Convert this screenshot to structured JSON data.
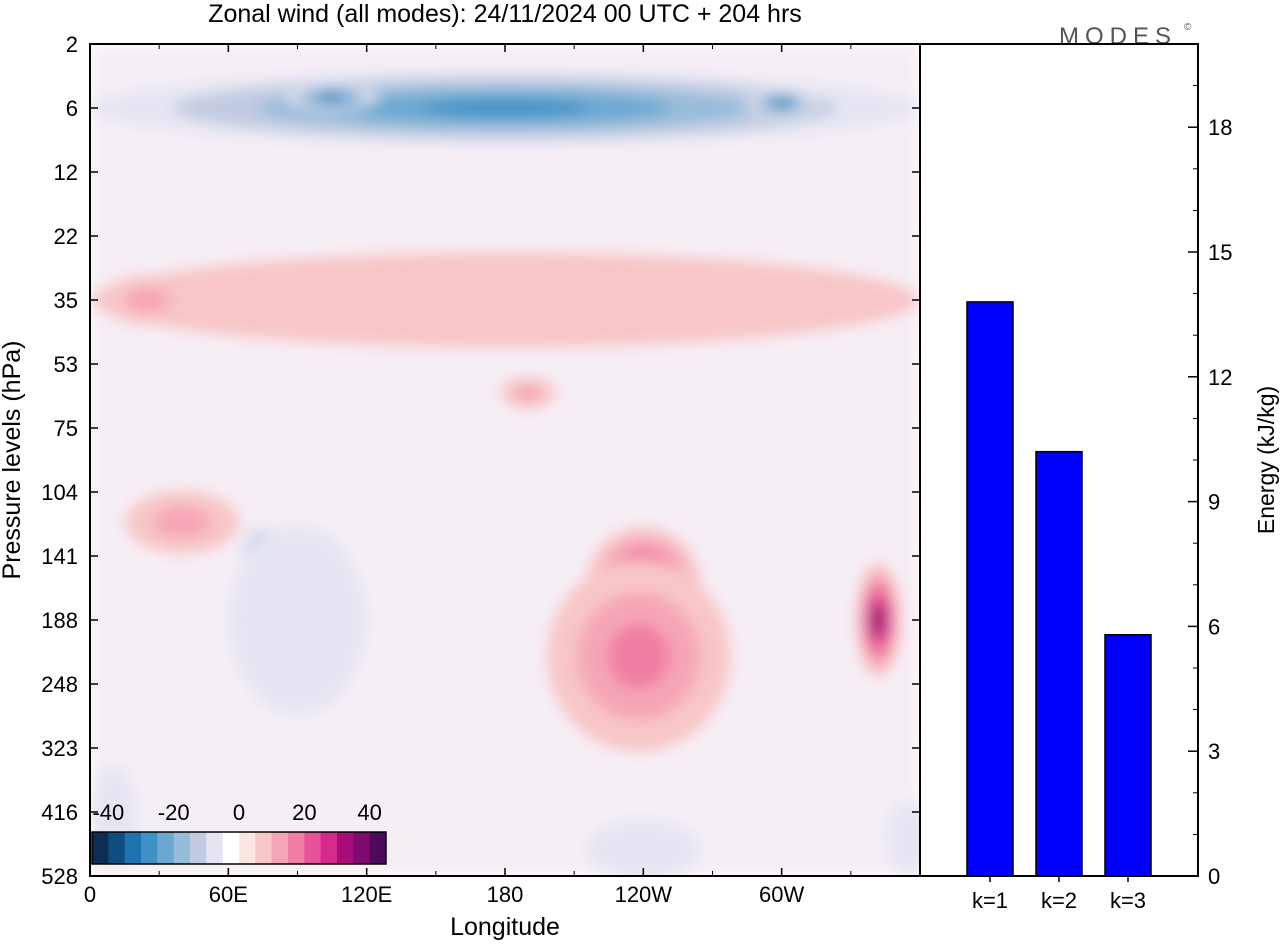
{
  "title": "Zonal wind (all modes):  24/11/2024  00 UTC  + 204 hrs",
  "logo_text": "MODES",
  "logo_mark": "©",
  "chart_data": [
    {
      "type": "heatmap",
      "title": "Zonal wind (all modes):  24/11/2024  00 UTC  + 204 hrs",
      "xlabel": "Longitude",
      "ylabel": "Pressure levels (hPa)",
      "x_ticks": [
        "0",
        "60E",
        "120E",
        "180",
        "120W",
        "60W"
      ],
      "x_range_deg": [
        0,
        360
      ],
      "y_ticks": [
        "2",
        "6",
        "12",
        "22",
        "35",
        "53",
        "75",
        "104",
        "141",
        "188",
        "248",
        "323",
        "416",
        "528"
      ],
      "colorbar": {
        "ticks": [
          "-40",
          "-20",
          "0",
          "20",
          "40"
        ],
        "range": [
          -45,
          45
        ],
        "colors": [
          "#0b2e52",
          "#0e4d7f",
          "#1d73b0",
          "#3f90c4",
          "#6aa8d1",
          "#97bcda",
          "#c2cbe2",
          "#e5e6f2",
          "#ffffff",
          "#fde5e2",
          "#f8c6c8",
          "#f5a5b5",
          "#f07ea2",
          "#e8529a",
          "#d42a8c",
          "#a80c7a",
          "#7d0a6e",
          "#4b0a5c"
        ]
      },
      "features": [
        {
          "lon": 180,
          "level": "6",
          "value": -30,
          "width_deg": 360,
          "depth_levels": 1.2
        },
        {
          "lon": 105,
          "level": "5",
          "value": -35,
          "width_deg": 40,
          "depth_levels": 0.4
        },
        {
          "lon": 300,
          "level": "5.5",
          "value": -35,
          "width_deg": 30,
          "depth_levels": 0.4
        },
        {
          "lon": 180,
          "level": "35",
          "value": 8,
          "width_deg": 360,
          "depth_levels": 1.5
        },
        {
          "lon": 25,
          "level": "35",
          "value": 13,
          "width_deg": 40,
          "depth_levels": 0.8
        },
        {
          "lon": 190,
          "level": "62",
          "value": 13,
          "width_deg": 25,
          "depth_levels": 0.5
        },
        {
          "lon": 75,
          "level": "141",
          "value": -25,
          "width_deg": 20,
          "depth_levels": 1.0
        },
        {
          "lon": 90,
          "level": "188",
          "value": -8,
          "width_deg": 60,
          "depth_levels": 3.0
        },
        {
          "lon": 40,
          "level": "120",
          "value": 12,
          "width_deg": 50,
          "depth_levels": 1.0
        },
        {
          "lon": 240,
          "level": "160",
          "value": 32,
          "width_deg": 50,
          "depth_levels": 1.8
        },
        {
          "lon": 238,
          "level": "220",
          "value": 15,
          "width_deg": 80,
          "depth_levels": 3.0
        },
        {
          "lon": 342,
          "level": "188",
          "value": 36,
          "width_deg": 20,
          "depth_levels": 1.8
        },
        {
          "lon": 240,
          "level": "480",
          "value": -6,
          "width_deg": 50,
          "depth_levels": 1.0
        },
        {
          "lon": 355,
          "level": "460",
          "value": -6,
          "width_deg": 20,
          "depth_levels": 1.2
        },
        {
          "lon": 10,
          "level": "416",
          "value": -6,
          "width_deg": 20,
          "depth_levels": 1.5
        }
      ]
    },
    {
      "type": "bar",
      "categories": [
        "k=1",
        "k=2",
        "k=3"
      ],
      "values": [
        13.8,
        10.2,
        5.8
      ],
      "ylabel": "Energy (kJ/kg)",
      "ylim": [
        0,
        20
      ],
      "y_ticks": [
        0,
        3,
        6,
        9,
        12,
        15,
        18
      ],
      "bar_color": "#0000ff"
    }
  ]
}
